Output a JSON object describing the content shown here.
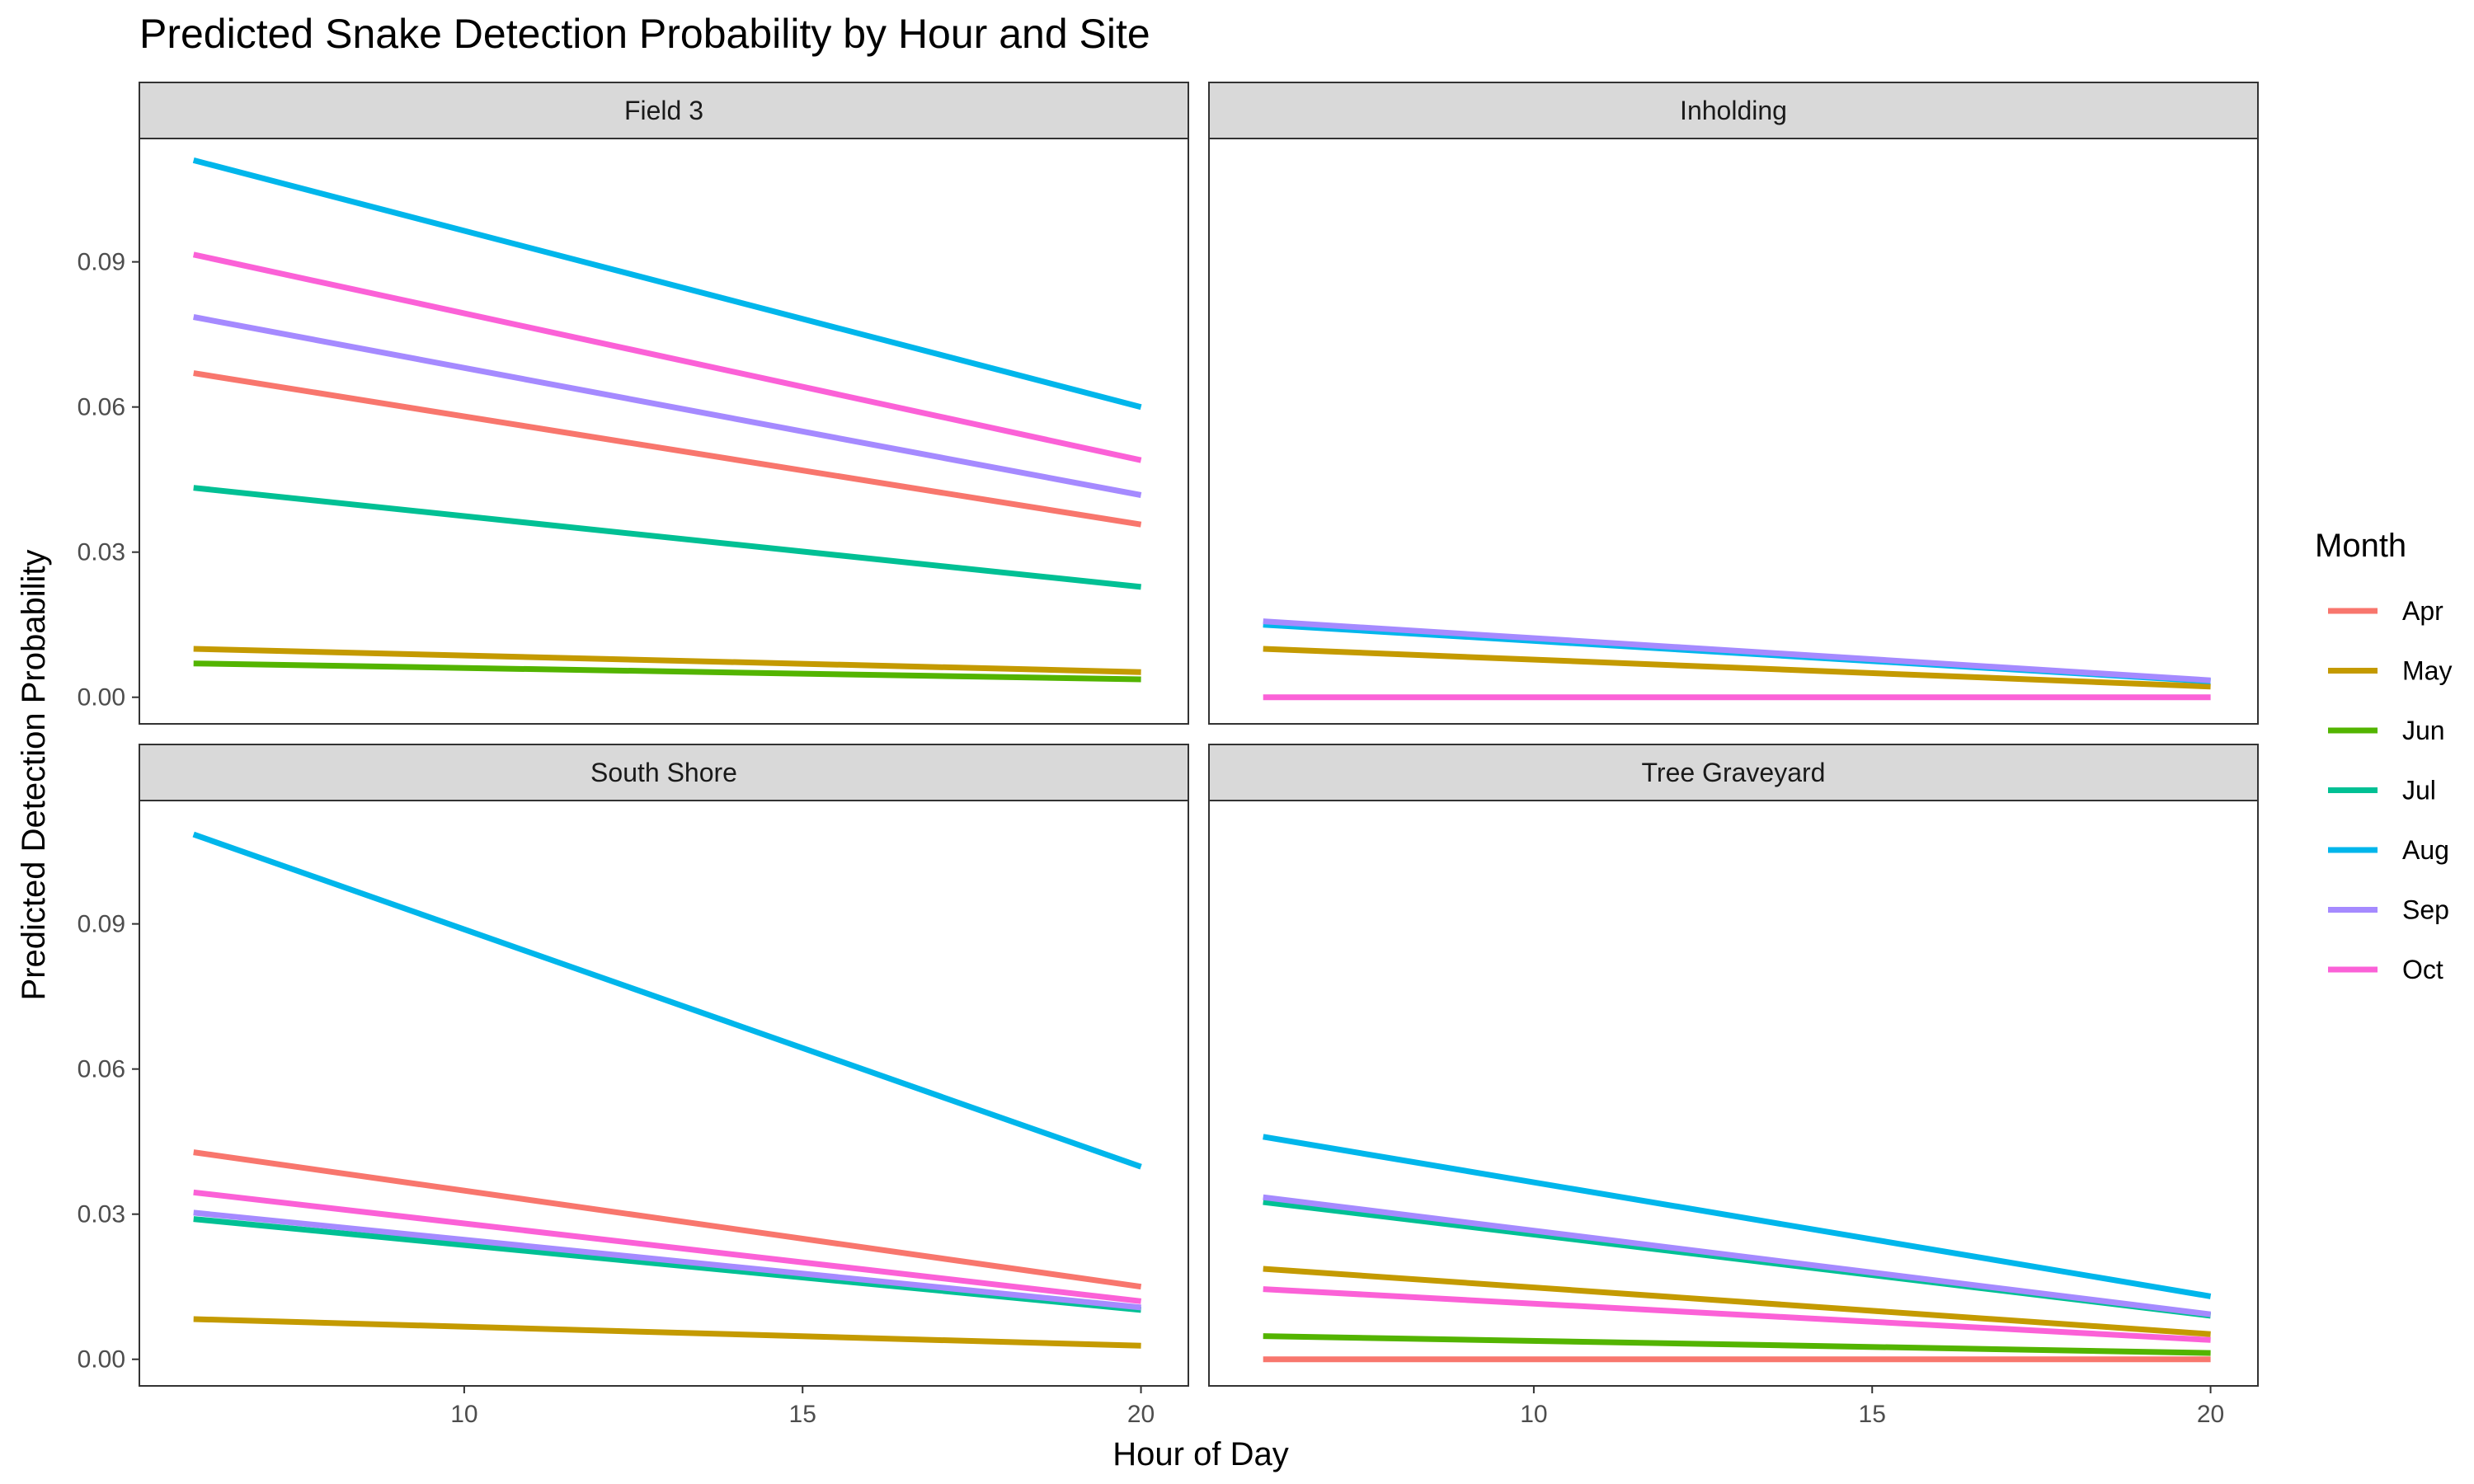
{
  "chart_data": {
    "type": "line",
    "title": "Predicted Snake Detection Probability by Hour and Site",
    "xlabel": "Hour of Day",
    "ylabel": "Predicted Detection Probability",
    "xlim": [
      5.2,
      20.7
    ],
    "ylim": [
      -0.0055,
      0.1155
    ],
    "x_ticks": [
      10,
      15,
      20
    ],
    "x_tick_labels": [
      "10",
      "15",
      "20"
    ],
    "y_ticks": [
      0,
      0.03,
      0.06,
      0.09
    ],
    "y_tick_labels": [
      "0.00",
      "0.03",
      "0.06",
      "0.09"
    ],
    "grid": false,
    "legend": {
      "title": "Month",
      "position": "right",
      "entries": [
        "Apr",
        "May",
        "Jun",
        "Jul",
        "Aug",
        "Sep",
        "Oct"
      ]
    },
    "colors": {
      "Apr": "#F8766D",
      "May": "#C49A00",
      "Jun": "#53B400",
      "Jul": "#00C094",
      "Aug": "#00B6EB",
      "Sep": "#A58AFF",
      "Oct": "#FB61D7"
    },
    "panels": [
      {
        "name": "Field 3",
        "series": [
          {
            "name": "May",
            "x": [
              6,
              20
            ],
            "y": [
              0.01,
              0.0052
            ]
          },
          {
            "name": "Jun",
            "x": [
              6,
              20
            ],
            "y": [
              0.007,
              0.0037
            ]
          },
          {
            "name": "Jul",
            "x": [
              6,
              20
            ],
            "y": [
              0.0433,
              0.0228
            ]
          },
          {
            "name": "Apr",
            "x": [
              6,
              20
            ],
            "y": [
              0.067,
              0.0357
            ]
          },
          {
            "name": "Sep",
            "x": [
              6,
              20
            ],
            "y": [
              0.0786,
              0.0418
            ]
          },
          {
            "name": "Oct",
            "x": [
              6,
              20
            ],
            "y": [
              0.0915,
              0.049
            ]
          },
          {
            "name": "Aug",
            "x": [
              6,
              20
            ],
            "y": [
              0.111,
              0.06
            ]
          }
        ]
      },
      {
        "name": "Inholding",
        "series": [
          {
            "name": "Oct",
            "x": [
              6,
              20
            ],
            "y": [
              0.0,
              0.0
            ]
          },
          {
            "name": "May",
            "x": [
              6,
              20
            ],
            "y": [
              0.01,
              0.0022
            ]
          },
          {
            "name": "Aug",
            "x": [
              6,
              20
            ],
            "y": [
              0.015,
              0.0033
            ]
          },
          {
            "name": "Sep",
            "x": [
              6,
              20
            ],
            "y": [
              0.0157,
              0.0035
            ]
          }
        ]
      },
      {
        "name": "South Shore",
        "series": [
          {
            "name": "May",
            "x": [
              6,
              20
            ],
            "y": [
              0.0083,
              0.0028
            ]
          },
          {
            "name": "Jul",
            "x": [
              6,
              20
            ],
            "y": [
              0.029,
              0.0102
            ]
          },
          {
            "name": "Sep",
            "x": [
              6,
              20
            ],
            "y": [
              0.0303,
              0.0107
            ]
          },
          {
            "name": "Oct",
            "x": [
              6,
              20
            ],
            "y": [
              0.0345,
              0.012
            ]
          },
          {
            "name": "Apr",
            "x": [
              6,
              20
            ],
            "y": [
              0.0428,
              0.015
            ]
          },
          {
            "name": "Aug",
            "x": [
              6,
              20
            ],
            "y": [
              0.1085,
              0.0398
            ]
          }
        ]
      },
      {
        "name": "Tree Graveyard",
        "series": [
          {
            "name": "Apr",
            "x": [
              6,
              20
            ],
            "y": [
              0.0,
              0.0
            ]
          },
          {
            "name": "Jun",
            "x": [
              6,
              20
            ],
            "y": [
              0.0048,
              0.0013
            ]
          },
          {
            "name": "Oct",
            "x": [
              6,
              20
            ],
            "y": [
              0.0145,
              0.004
            ]
          },
          {
            "name": "May",
            "x": [
              6,
              20
            ],
            "y": [
              0.0187,
              0.0052
            ]
          },
          {
            "name": "Jul",
            "x": [
              6,
              20
            ],
            "y": [
              0.0325,
              0.009
            ]
          },
          {
            "name": "Sep",
            "x": [
              6,
              20
            ],
            "y": [
              0.0335,
              0.0093
            ]
          },
          {
            "name": "Aug",
            "x": [
              6,
              20
            ],
            "y": [
              0.046,
              0.013
            ]
          }
        ]
      }
    ]
  }
}
